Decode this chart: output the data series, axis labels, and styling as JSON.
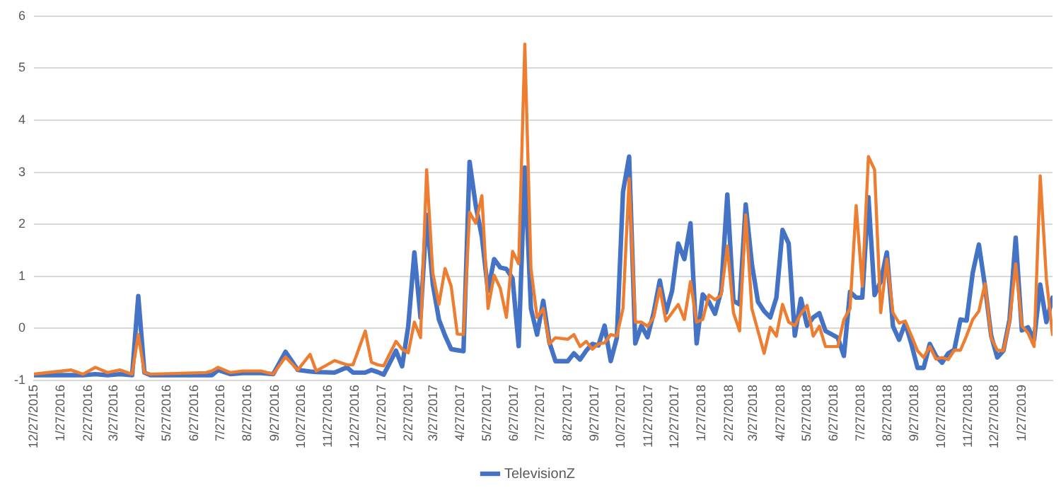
{
  "chart_data": {
    "type": "line",
    "x": [
      "2015-12-27",
      "2016-02-07",
      "2016-02-21",
      "2016-03-06",
      "2016-03-20",
      "2016-04-03",
      "2016-04-17",
      "2016-04-24",
      "2016-05-01",
      "2016-05-08",
      "2016-07-10",
      "2016-07-17",
      "2016-07-24",
      "2016-08-07",
      "2016-08-21",
      "2016-09-11",
      "2016-09-25",
      "2016-10-09",
      "2016-10-23",
      "2016-11-06",
      "2016-11-13",
      "2016-12-04",
      "2016-12-18",
      "2016-12-25",
      "2017-01-08",
      "2017-01-15",
      "2017-01-22",
      "2017-01-29",
      "2017-02-12",
      "2017-02-19",
      "2017-02-26",
      "2017-03-05",
      "2017-03-12",
      "2017-03-19",
      "2017-03-26",
      "2017-04-02",
      "2017-04-09",
      "2017-04-16",
      "2017-04-23",
      "2017-04-30",
      "2017-05-07",
      "2017-05-14",
      "2017-05-21",
      "2017-05-28",
      "2017-06-04",
      "2017-06-11",
      "2017-06-18",
      "2017-06-25",
      "2017-07-02",
      "2017-07-09",
      "2017-07-16",
      "2017-07-23",
      "2017-07-30",
      "2017-08-06",
      "2017-08-13",
      "2017-08-27",
      "2017-09-03",
      "2017-09-10",
      "2017-09-17",
      "2017-09-24",
      "2017-10-01",
      "2017-10-08",
      "2017-10-15",
      "2017-10-22",
      "2017-10-29",
      "2017-11-05",
      "2017-11-12",
      "2017-11-19",
      "2017-11-26",
      "2017-12-03",
      "2017-12-10",
      "2017-12-17",
      "2017-12-24",
      "2017-12-31",
      "2018-01-07",
      "2018-01-14",
      "2018-01-21",
      "2018-01-28",
      "2018-02-04",
      "2018-02-11",
      "2018-02-18",
      "2018-02-25",
      "2018-03-04",
      "2018-03-11",
      "2018-03-18",
      "2018-03-25",
      "2018-04-01",
      "2018-04-08",
      "2018-04-15",
      "2018-04-22",
      "2018-04-29",
      "2018-05-06",
      "2018-05-13",
      "2018-05-20",
      "2018-05-27",
      "2018-06-03",
      "2018-06-10",
      "2018-06-17",
      "2018-07-01",
      "2018-07-08",
      "2018-07-15",
      "2018-07-22",
      "2018-07-29",
      "2018-08-05",
      "2018-08-12",
      "2018-08-19",
      "2018-08-26",
      "2018-09-02",
      "2018-09-09",
      "2018-09-16",
      "2018-09-23",
      "2018-09-30",
      "2018-10-07",
      "2018-10-14",
      "2018-10-21",
      "2018-10-28",
      "2018-11-04",
      "2018-11-11",
      "2018-11-18",
      "2018-11-25",
      "2018-12-02",
      "2018-12-09",
      "2018-12-16",
      "2018-12-23",
      "2018-12-30",
      "2019-01-06",
      "2019-01-13",
      "2019-01-20",
      "2019-01-27",
      "2019-02-03",
      "2019-02-10",
      "2019-02-17",
      "2019-02-24",
      "2019-03-03"
    ],
    "series": [
      {
        "name": "TelevisionZ",
        "color": "#4472c4",
        "values": [
          -0.9,
          -0.9,
          -0.9,
          -0.88,
          -0.9,
          -0.88,
          -0.9,
          0.62,
          -0.85,
          -0.9,
          -0.9,
          -0.9,
          -0.8,
          -0.88,
          -0.86,
          -0.86,
          -0.88,
          -0.45,
          -0.8,
          -0.83,
          -0.84,
          -0.85,
          -0.75,
          -0.85,
          -0.85,
          -0.8,
          -0.84,
          -0.89,
          -0.43,
          -0.73,
          0.04,
          1.46,
          0.21,
          2.18,
          0.85,
          0.17,
          -0.14,
          -0.4,
          -0.42,
          -0.44,
          3.2,
          2.36,
          1.76,
          0.72,
          1.33,
          1.17,
          1.14,
          0.96,
          -0.34,
          3.09,
          0.38,
          -0.12,
          0.53,
          -0.27,
          -0.63,
          -0.63,
          -0.48,
          -0.6,
          -0.43,
          -0.3,
          -0.33,
          0.05,
          -0.63,
          -0.18,
          2.62,
          3.3,
          -0.29,
          0.05,
          -0.17,
          0.3,
          0.92,
          0.3,
          0.72,
          1.63,
          1.33,
          2.02,
          -0.29,
          0.65,
          0.51,
          0.28,
          0.72,
          2.57,
          0.53,
          0.46,
          2.38,
          1.24,
          0.51,
          0.33,
          0.21,
          0.59,
          1.89,
          1.63,
          -0.14,
          0.57,
          0.05,
          0.21,
          0.29,
          -0.05,
          -0.18,
          -0.53,
          0.7,
          0.59,
          0.59,
          2.52,
          0.64,
          0.9,
          1.46,
          0.04,
          -0.22,
          0.1,
          -0.3,
          -0.76,
          -0.76,
          -0.3,
          -0.53,
          -0.66,
          -0.48,
          -0.41,
          0.17,
          0.15,
          1.07,
          1.61,
          0.81,
          -0.14,
          -0.56,
          -0.43,
          0.17,
          1.74,
          -0.04,
          0.02,
          -0.22,
          0.84,
          0.12,
          0.59
        ]
      },
      {
        "color": "#ed7d31",
        "values": [
          -0.88,
          -0.8,
          -0.88,
          -0.75,
          -0.85,
          -0.8,
          -0.88,
          -0.12,
          -0.85,
          -0.88,
          -0.85,
          -0.82,
          -0.75,
          -0.85,
          -0.82,
          -0.82,
          -0.88,
          -0.55,
          -0.8,
          -0.5,
          -0.82,
          -0.62,
          -0.7,
          -0.7,
          -0.05,
          -0.65,
          -0.7,
          -0.72,
          -0.25,
          -0.4,
          -0.47,
          0.12,
          -0.18,
          3.05,
          1.07,
          0.46,
          1.15,
          0.81,
          -0.11,
          -0.12,
          2.23,
          2.02,
          2.55,
          0.38,
          1.02,
          0.77,
          0.21,
          1.48,
          1.24,
          5.46,
          1.15,
          0.21,
          0.38,
          -0.3,
          -0.18,
          -0.21,
          -0.12,
          -0.35,
          -0.25,
          -0.4,
          -0.3,
          -0.28,
          -0.12,
          -0.15,
          0.38,
          2.88,
          0.12,
          0.12,
          0.04,
          0.21,
          0.77,
          0.14,
          0.3,
          0.46,
          0.17,
          0.9,
          0.12,
          0.17,
          0.64,
          0.55,
          0.64,
          1.58,
          0.3,
          -0.05,
          2.18,
          0.38,
          -0.05,
          -0.48,
          0.02,
          -0.15,
          0.46,
          0.12,
          0.05,
          0.28,
          0.44,
          -0.15,
          0.04,
          -0.35,
          -0.35,
          0.17,
          0.38,
          2.36,
          0.81,
          3.3,
          3.05,
          0.3,
          1.33,
          0.3,
          0.1,
          0.14,
          -0.14,
          -0.43,
          -0.56,
          -0.35,
          -0.59,
          -0.56,
          -0.6,
          -0.42,
          -0.42,
          -0.14,
          0.17,
          0.33,
          0.86,
          -0.18,
          -0.42,
          -0.43,
          0.12,
          1.24,
          0.05,
          -0.09,
          -0.35,
          2.93,
          0.95,
          -0.12
        ]
      }
    ],
    "xlim": [
      "2015-12-27",
      "2019-03-03"
    ],
    "xticks": [
      {
        "value": "2015-12-27",
        "label": "12/27/2015"
      },
      {
        "value": "2016-01-27",
        "label": "1/27/2016"
      },
      {
        "value": "2016-02-27",
        "label": "2/27/2016"
      },
      {
        "value": "2016-03-27",
        "label": "3/27/2016"
      },
      {
        "value": "2016-04-27",
        "label": "4/27/2016"
      },
      {
        "value": "2016-05-27",
        "label": "5/27/2016"
      },
      {
        "value": "2016-06-27",
        "label": "6/27/2016"
      },
      {
        "value": "2016-07-27",
        "label": "7/27/2016"
      },
      {
        "value": "2016-08-27",
        "label": "8/27/2016"
      },
      {
        "value": "2016-09-27",
        "label": "9/27/2016"
      },
      {
        "value": "2016-10-27",
        "label": "10/27/2016"
      },
      {
        "value": "2016-11-27",
        "label": "11/27/2016"
      },
      {
        "value": "2016-12-27",
        "label": "12/27/2016"
      },
      {
        "value": "2017-01-27",
        "label": "1/27/2017"
      },
      {
        "value": "2017-02-27",
        "label": "2/27/2017"
      },
      {
        "value": "2017-03-27",
        "label": "3/27/2017"
      },
      {
        "value": "2017-04-27",
        "label": "4/27/2017"
      },
      {
        "value": "2017-05-27",
        "label": "5/27/2017"
      },
      {
        "value": "2017-06-27",
        "label": "6/27/2017"
      },
      {
        "value": "2017-07-27",
        "label": "7/27/2017"
      },
      {
        "value": "2017-08-27",
        "label": "8/27/2017"
      },
      {
        "value": "2017-09-27",
        "label": "9/27/2017"
      },
      {
        "value": "2017-10-27",
        "label": "10/27/2017"
      },
      {
        "value": "2017-11-27",
        "label": "11/27/2017"
      },
      {
        "value": "2017-12-27",
        "label": "12/27/2017"
      },
      {
        "value": "2018-01-27",
        "label": "1/27/2018"
      },
      {
        "value": "2018-02-27",
        "label": "2/27/2018"
      },
      {
        "value": "2018-03-27",
        "label": "3/27/2018"
      },
      {
        "value": "2018-04-27",
        "label": "4/27/2018"
      },
      {
        "value": "2018-05-27",
        "label": "5/27/2018"
      },
      {
        "value": "2018-06-27",
        "label": "6/27/2018"
      },
      {
        "value": "2018-07-27",
        "label": "7/27/2018"
      },
      {
        "value": "2018-08-27",
        "label": "8/27/2018"
      },
      {
        "value": "2018-09-27",
        "label": "9/27/2018"
      },
      {
        "value": "2018-10-27",
        "label": "10/27/2018"
      },
      {
        "value": "2018-11-27",
        "label": "11/27/2018"
      },
      {
        "value": "2018-12-27",
        "label": "12/27/2018"
      },
      {
        "value": "2019-01-27",
        "label": "1/27/2019"
      }
    ],
    "ylim": [
      -1,
      6
    ],
    "yticks": [
      -1,
      0,
      1,
      2,
      3,
      4,
      5,
      6
    ],
    "grid": "y",
    "legend": "bottom",
    "marker": "none",
    "line_style": "solid"
  }
}
